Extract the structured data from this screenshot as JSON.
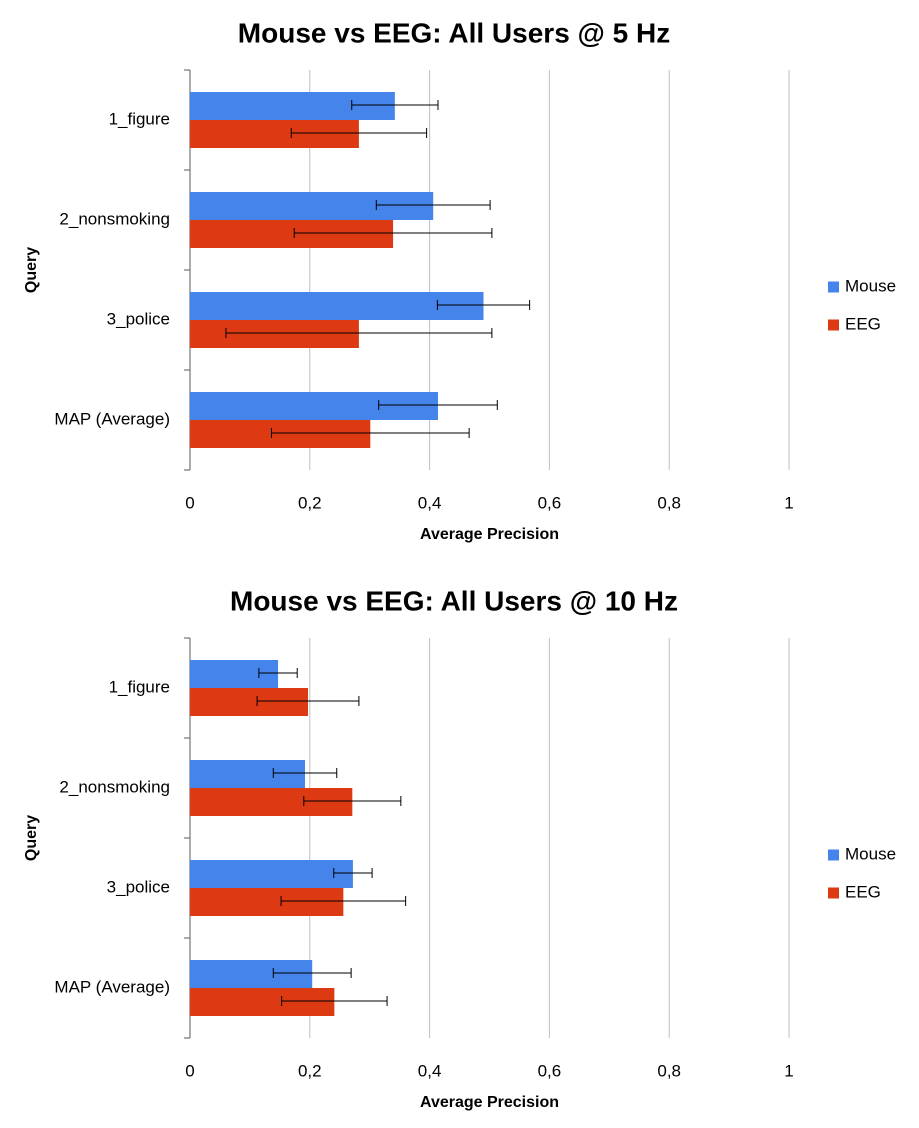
{
  "colors": {
    "mouse": "#4585eb",
    "eeg": "#dd3a14",
    "grid": "#bfbfbf",
    "axis": "#595959"
  },
  "chart_data": [
    {
      "type": "bar",
      "orientation": "horizontal",
      "title": "Mouse vs EEG: All Users @ 5 Hz",
      "xlabel": "Average Precision",
      "ylabel": "Query",
      "categories": [
        "1_figure",
        "2_nonsmoking",
        "3_police",
        "MAP (Average)"
      ],
      "xlim": [
        0,
        1
      ],
      "xticks": [
        "0",
        "0,2",
        "0,4",
        "0,6",
        "0,8",
        "1"
      ],
      "xtick_values": [
        0,
        0.2,
        0.4,
        0.6,
        0.8,
        1
      ],
      "grid": true,
      "legend": "right",
      "series": [
        {
          "name": "Mouse",
          "color": "#4585eb",
          "values": [
            0.342,
            0.406,
            0.49,
            0.414
          ],
          "errors": [
            0.072,
            0.095,
            0.077,
            0.099
          ]
        },
        {
          "name": "EEG",
          "color": "#dd3a14",
          "values": [
            0.282,
            0.339,
            0.282,
            0.301
          ],
          "errors": [
            0.113,
            0.165,
            0.222,
            0.165
          ]
        }
      ]
    },
    {
      "type": "bar",
      "orientation": "horizontal",
      "title": "Mouse vs EEG: All Users @ 10 Hz",
      "xlabel": "Average Precision",
      "ylabel": "Query",
      "categories": [
        "1_figure",
        "2_nonsmoking",
        "3_police",
        "MAP (Average)"
      ],
      "xlim": [
        0,
        1
      ],
      "xticks": [
        "0",
        "0,2",
        "0,4",
        "0,6",
        "0,8",
        "1"
      ],
      "xtick_values": [
        0,
        0.2,
        0.4,
        0.6,
        0.8,
        1
      ],
      "grid": true,
      "legend": "right",
      "series": [
        {
          "name": "Mouse",
          "color": "#4585eb",
          "values": [
            0.147,
            0.192,
            0.272,
            0.204
          ],
          "errors": [
            0.032,
            0.053,
            0.032,
            0.065
          ]
        },
        {
          "name": "EEG",
          "color": "#dd3a14",
          "values": [
            0.197,
            0.271,
            0.256,
            0.241
          ],
          "errors": [
            0.085,
            0.081,
            0.104,
            0.088
          ]
        }
      ]
    }
  ]
}
